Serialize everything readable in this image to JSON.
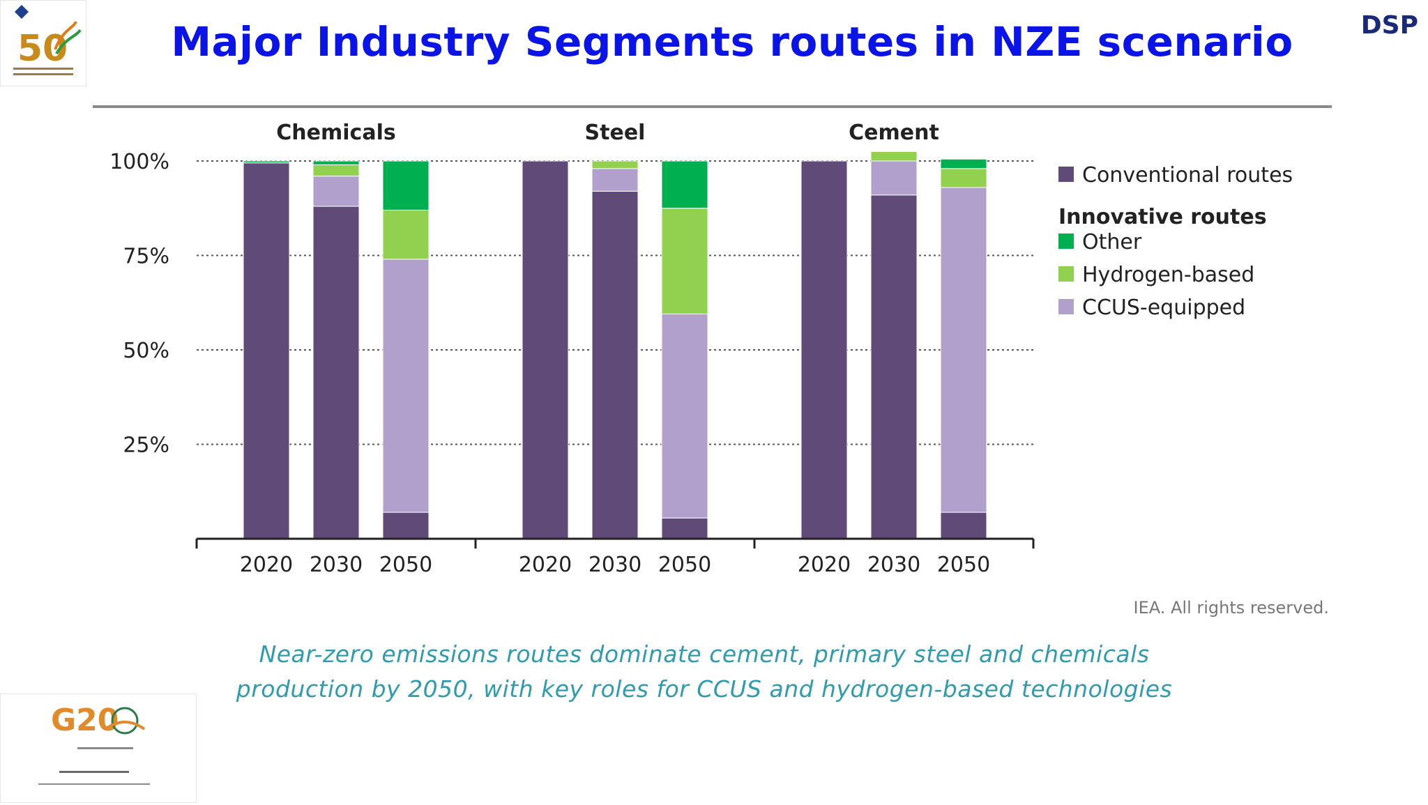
{
  "slide": {
    "title": "Major Industry Segments routes in NZE scenario",
    "corner_label": "DSP",
    "caption_line1": "Near-zero emissions routes dominate cement, primary steel and chemicals",
    "caption_line2": "production by 2050, with key roles for CCUS and hydrogen-based technologies",
    "source": "IEA. All rights reserved.",
    "logo_top_left_text": "50",
    "logo_bottom_left_text": "G20"
  },
  "colors": {
    "conventional": "#5f4a78",
    "ccus": "#b1a0cb",
    "hydrogen": "#92d050",
    "other": "#00b050",
    "title": "#0a14e6",
    "caption": "#2e9bb0"
  },
  "chart_data": {
    "type": "bar",
    "stacked": true,
    "y_unit": "percent",
    "ylim": [
      0,
      100
    ],
    "yticks": [
      25,
      50,
      75,
      100
    ],
    "ytick_labels": [
      "25%",
      "50%",
      "75%",
      "100%"
    ],
    "grid": "dotted horizontal",
    "legend_placement": "right",
    "groups": [
      {
        "name": "Chemicals",
        "categories": [
          "2020",
          "2030",
          "2050"
        ]
      },
      {
        "name": "Steel",
        "categories": [
          "2020",
          "2030",
          "2050"
        ]
      },
      {
        "name": "Cement",
        "categories": [
          "2020",
          "2030",
          "2050"
        ]
      }
    ],
    "series": [
      {
        "name": "Conventional routes",
        "color": "#5f4a78",
        "values": [
          [
            99.5,
            88,
            7
          ],
          [
            100,
            92,
            5.5
          ],
          [
            100,
            91,
            7
          ]
        ]
      },
      {
        "name": "CCUS-equipped",
        "color": "#b1a0cb",
        "values": [
          [
            0,
            8,
            67
          ],
          [
            0,
            6,
            54
          ],
          [
            0,
            9,
            86
          ]
        ]
      },
      {
        "name": "Hydrogen-based",
        "color": "#92d050",
        "values": [
          [
            0,
            3,
            13
          ],
          [
            0,
            2,
            28
          ],
          [
            0,
            2.5,
            5
          ]
        ]
      },
      {
        "name": "Other",
        "color": "#00b050",
        "values": [
          [
            0.5,
            1,
            13
          ],
          [
            0,
            0,
            12.5
          ],
          [
            0,
            0,
            2.5
          ]
        ]
      }
    ],
    "legend": {
      "entries": [
        {
          "label": "Conventional routes",
          "color": "#5f4a78"
        },
        {
          "heading": "Innovative routes"
        },
        {
          "label": "Other",
          "color": "#00b050"
        },
        {
          "label": "Hydrogen-based",
          "color": "#92d050"
        },
        {
          "label": "CCUS-equipped",
          "color": "#b1a0cb"
        }
      ]
    }
  }
}
